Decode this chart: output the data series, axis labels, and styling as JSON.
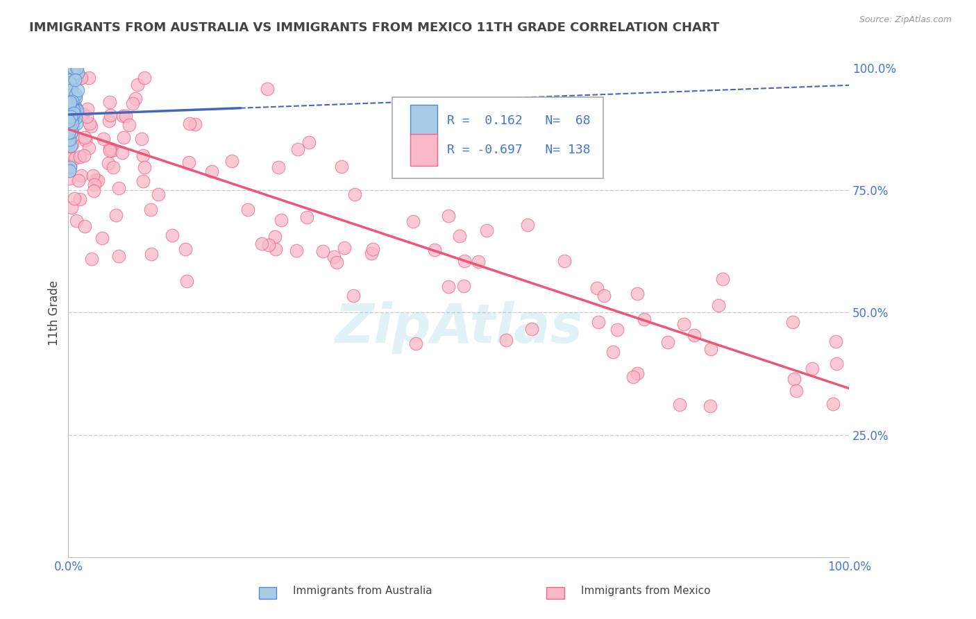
{
  "title": "IMMIGRANTS FROM AUSTRALIA VS IMMIGRANTS FROM MEXICO 11TH GRADE CORRELATION CHART",
  "source_text": "Source: ZipAtlas.com",
  "ylabel": "11th Grade",
  "xlim": [
    0.0,
    1.0
  ],
  "ylim": [
    0.0,
    1.0
  ],
  "ytick_vals": [
    0.0,
    0.25,
    0.5,
    0.75,
    1.0
  ],
  "ytick_labels": [
    "",
    "25.0%",
    "50.0%",
    "75.0%",
    "100.0%"
  ],
  "r_australia": 0.162,
  "n_australia": 68,
  "r_mexico": -0.697,
  "n_mexico": 138,
  "color_australia_face": "#a8cce8",
  "color_australia_edge": "#5588cc",
  "color_mexico_face": "#f8b8c8",
  "color_mexico_edge": "#ee6688",
  "color_australia_line": "#4466bb",
  "color_mexico_line": "#ee5577",
  "text_color_blue": "#4477cc",
  "text_color_dark": "#444444",
  "background_color": "#ffffff",
  "grid_color": "#cccccc",
  "watermark_color": "#88ccdd",
  "watermark_alpha": 0.25
}
